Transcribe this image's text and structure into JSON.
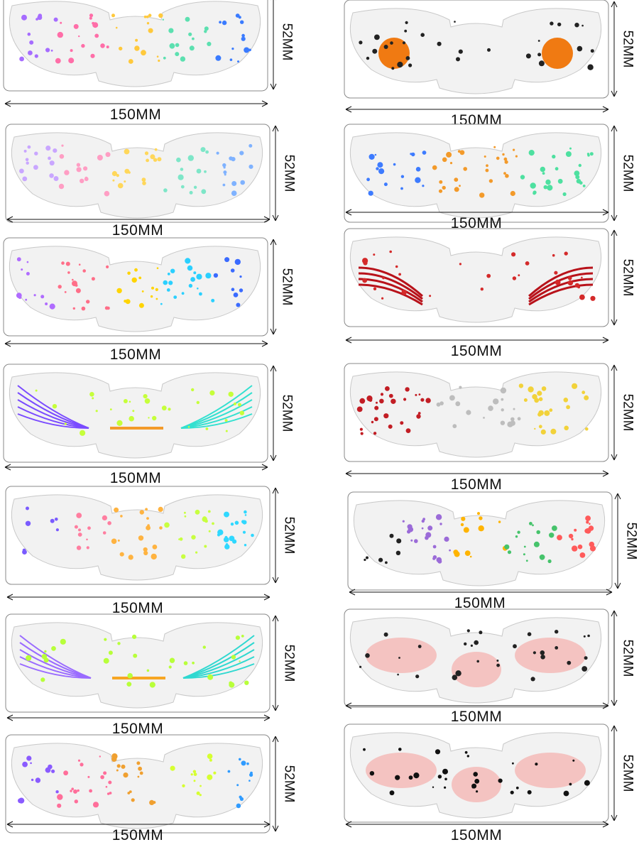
{
  "width_label": "150MM",
  "height_label": "52MM",
  "panels": [
    {
      "id": "pumpkin-rainbow",
      "colors": [
        "#a66cff",
        "#ff6ea8",
        "#ffc93c",
        "#5ce0b0",
        "#3a7bff"
      ],
      "style": "dots",
      "width_label": "150MM",
      "height_label": "52MM"
    },
    {
      "id": "orange-pumpkins",
      "colors": [
        "#f07a12",
        "#e8531c",
        "#222222"
      ],
      "style": "pumpkin",
      "width_label": "150MM",
      "height_label": "52MM"
    },
    {
      "id": "ghost-moon-rainbow",
      "colors": [
        "#c9a6ff",
        "#ff9ec4",
        "#ffd75a",
        "#7ee6c8",
        "#7fb2ff"
      ],
      "style": "dots",
      "width_label": "150MM",
      "height_label": "52MM"
    },
    {
      "id": "hearts-freckles",
      "colors": [
        "#3d7bff",
        "#f39a2a",
        "#4ee0a0"
      ],
      "style": "dots",
      "width_label": "150MM",
      "height_label": "52MM"
    },
    {
      "id": "skull-vines-rainbow",
      "colors": [
        "#b06cff",
        "#ff6e88",
        "#ffd400",
        "#2bd0ff",
        "#3a6bff"
      ],
      "style": "dots",
      "width_label": "150MM",
      "height_label": "52MM"
    },
    {
      "id": "blood-scratches",
      "colors": [
        "#b8121a",
        "#d42a2a"
      ],
      "style": "scratch",
      "width_label": "150MM",
      "height_label": "52MM"
    },
    {
      "id": "spider-web-rainbow",
      "colors": [
        "#7a4bff",
        "#f39a2a",
        "#33e0d0",
        "#c6ff3a"
      ],
      "style": "web",
      "width_label": "150MM",
      "height_label": "52MM"
    },
    {
      "id": "bloody-hands",
      "colors": [
        "#c21d24",
        "#bdbdbd",
        "#f2d23a"
      ],
      "style": "dots",
      "width_label": "150MM",
      "height_label": "52MM"
    },
    {
      "id": "bats-stars-rainbow",
      "colors": [
        "#7a5bff",
        "#ff7ea0",
        "#ffb340",
        "#c8ff40",
        "#2fd8ff"
      ],
      "style": "dots",
      "width_label": "150MM",
      "height_label": "52MM"
    },
    {
      "id": "cute-bats-stars",
      "colors": [
        "#222222",
        "#9b6bd8",
        "#ffb400",
        "#46c36b",
        "#ff5a5a"
      ],
      "style": "dots",
      "width_label": "150MM",
      "height_label": "52MM"
    },
    {
      "id": "web-stitch-spider",
      "colors": [
        "#9a6bff",
        "#f7a623",
        "#2fd8d0",
        "#b8ff3a"
      ],
      "style": "web",
      "width_label": "150MM",
      "height_label": "52MM"
    },
    {
      "id": "blush-bats",
      "colors": [
        "#f5a3a0",
        "#222222"
      ],
      "style": "blush",
      "width_label": "150MM",
      "height_label": "52MM"
    },
    {
      "id": "bats-freckles-rainbow",
      "colors": [
        "#8a5bff",
        "#ff6e9a",
        "#f0a030",
        "#d6ff30",
        "#2f9bff"
      ],
      "style": "dots",
      "width_label": "150MM",
      "height_label": "52MM"
    },
    {
      "id": "blush-sparkles",
      "colors": [
        "#f5a3a0",
        "#111111"
      ],
      "style": "blush",
      "width_label": "150MM",
      "height_label": "52MM"
    }
  ]
}
